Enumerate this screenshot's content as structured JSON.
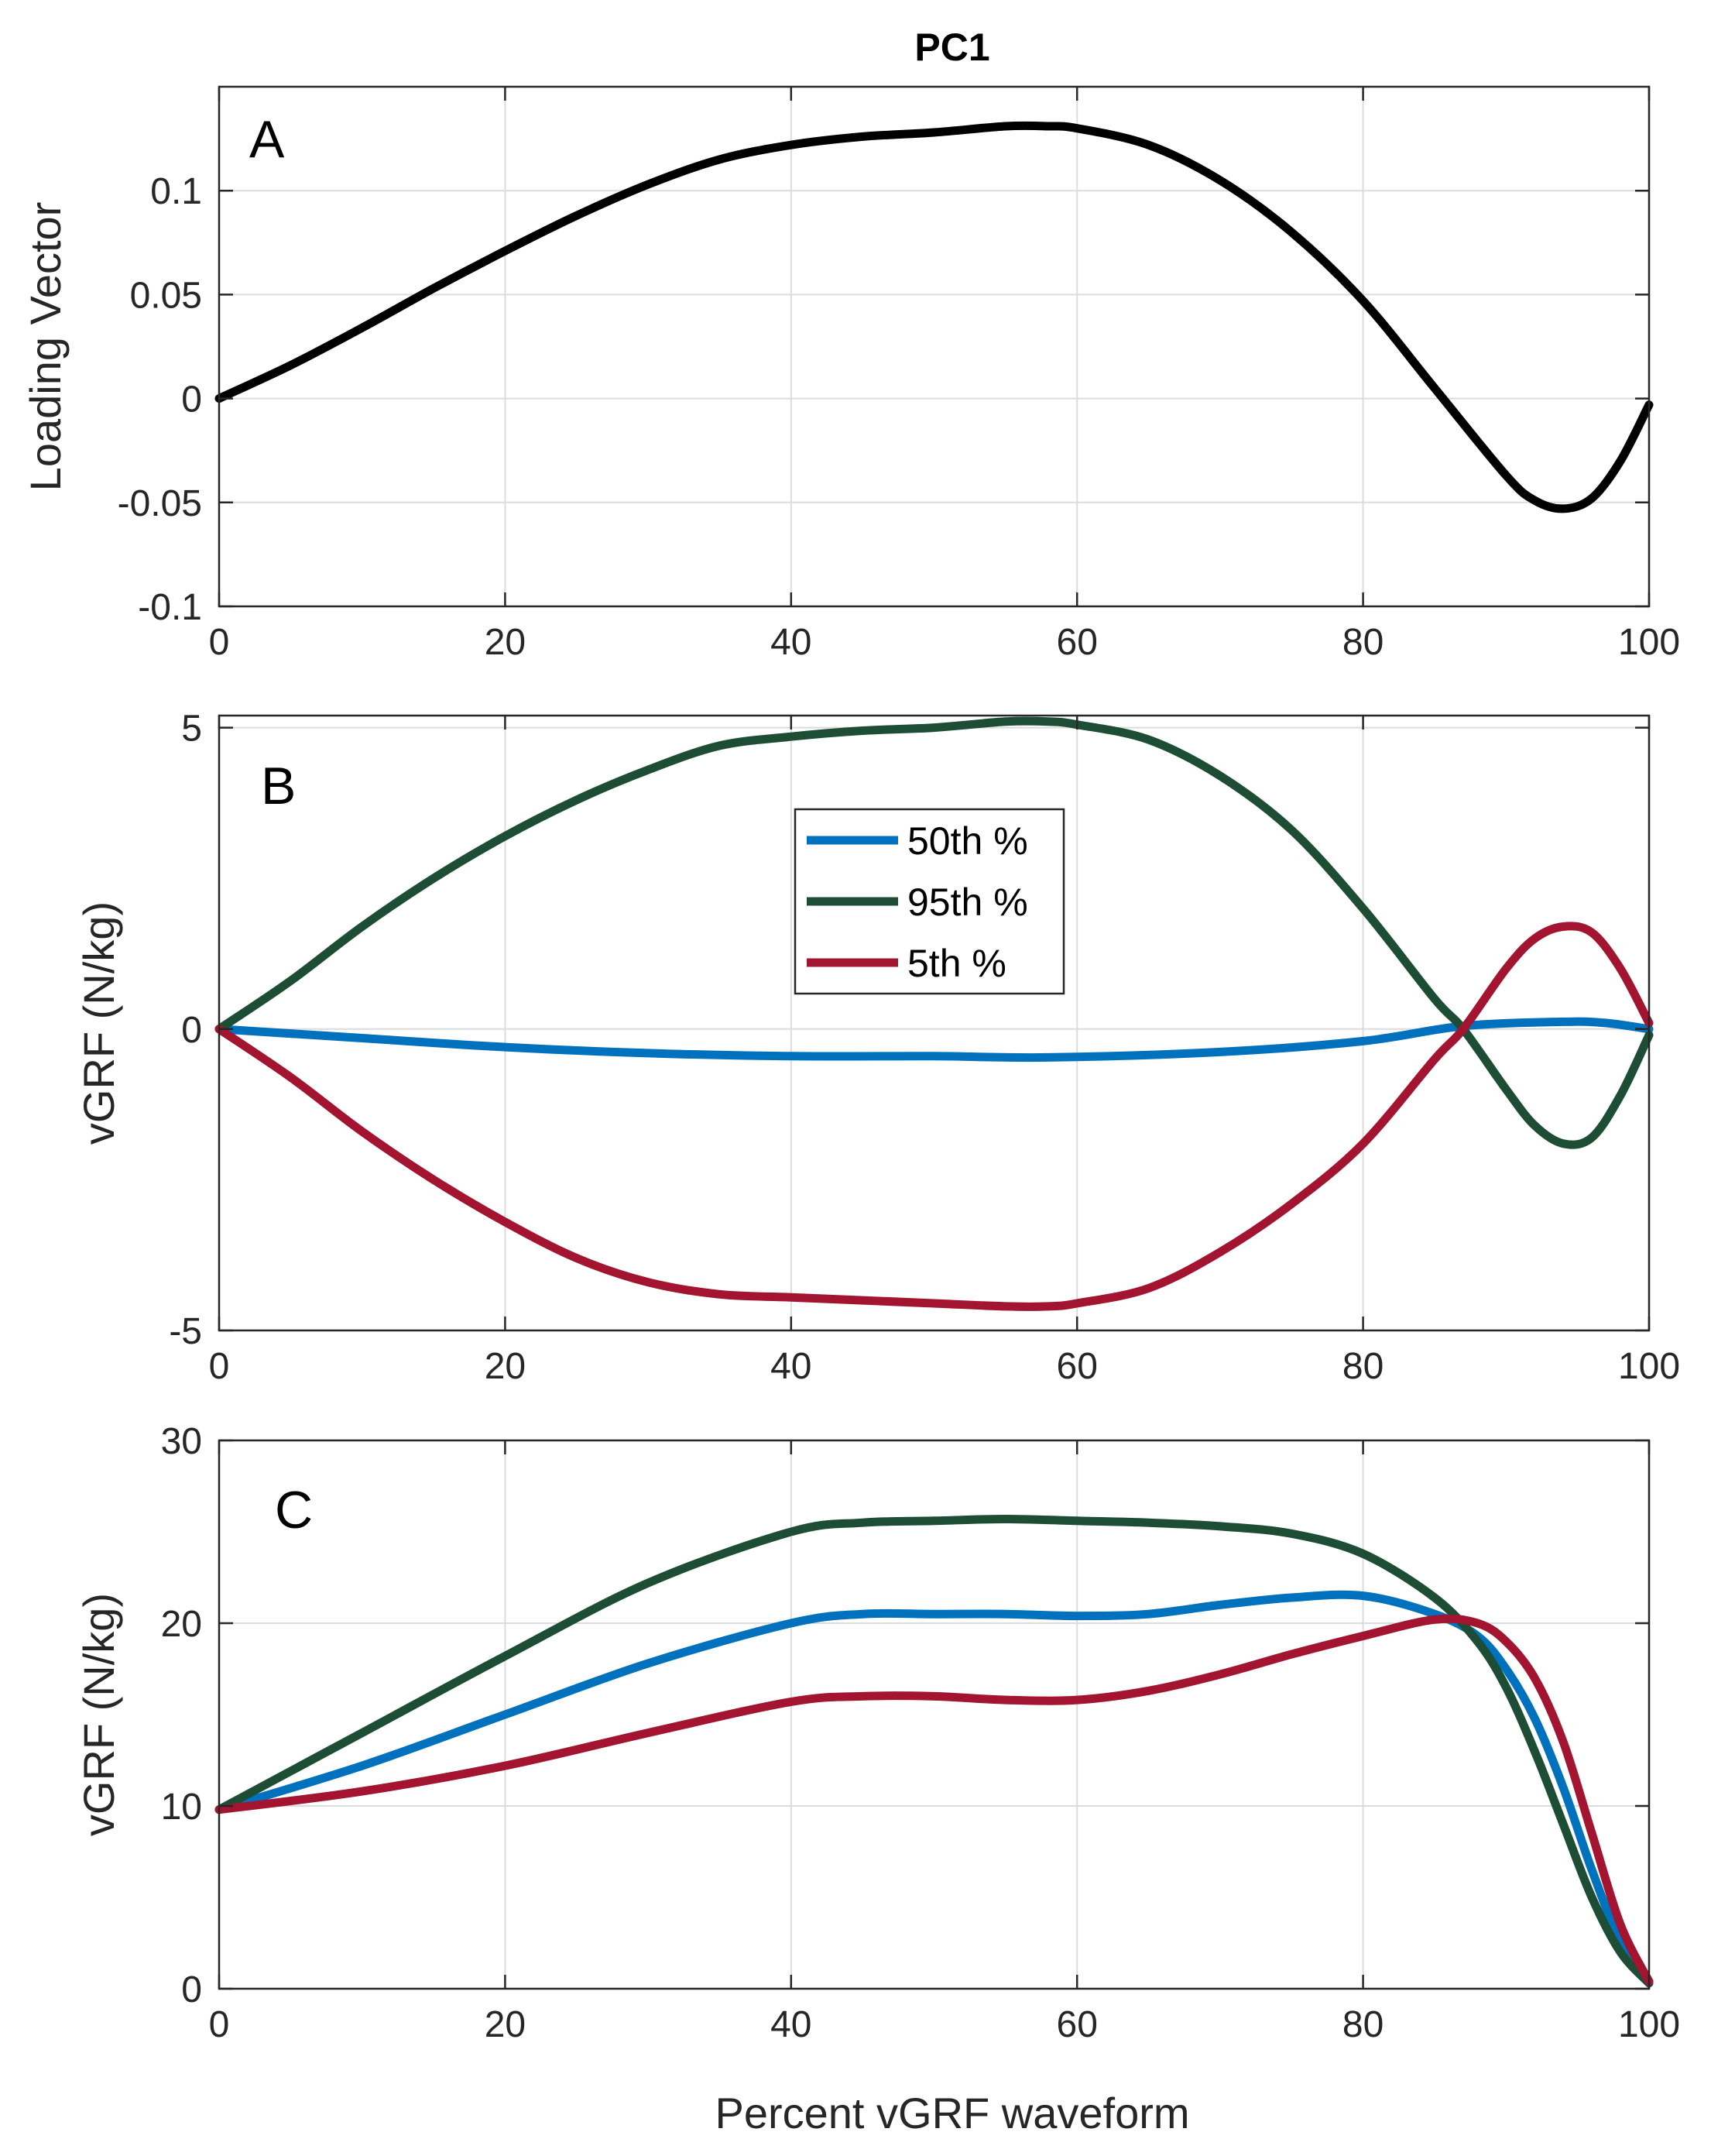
{
  "figure_title": "PC1",
  "x_axis_label": "Percent vGRF waveform",
  "legend": [
    {
      "label": "50th %",
      "color": "#0072BD"
    },
    {
      "label": "95th %",
      "color": "#1D4E35"
    },
    {
      "label": "5th %",
      "color": "#A2142F"
    }
  ],
  "chart_data": [
    {
      "type": "line",
      "panel": "A",
      "title": "PC1",
      "xlabel": "",
      "ylabel": "Loading Vector",
      "xlim": [
        0,
        100
      ],
      "ylim": [
        -0.1,
        0.15
      ],
      "xticks": [
        0,
        20,
        40,
        60,
        80,
        100
      ],
      "xtick_labels": [
        "0",
        "20",
        "40",
        "60",
        "80",
        "100"
      ],
      "yticks": [
        -0.1,
        -0.05,
        0,
        0.05,
        0.1
      ],
      "ytick_labels": [
        "-0.1",
        "-0.05",
        "0",
        "0.05",
        "0.1"
      ],
      "grid": true,
      "series": [
        {
          "name": "Loading Vector",
          "color": "#000000",
          "x": [
            0,
            5,
            10,
            15,
            20,
            25,
            30,
            35,
            40,
            45,
            50,
            55,
            58,
            60,
            65,
            70,
            75,
            80,
            85,
            90,
            92,
            94,
            96,
            98,
            100
          ],
          "y": [
            0,
            0.016,
            0.034,
            0.053,
            0.071,
            0.088,
            0.103,
            0.115,
            0.122,
            0.126,
            0.128,
            0.131,
            0.131,
            0.13,
            0.122,
            0.105,
            0.08,
            0.047,
            0.005,
            -0.037,
            -0.049,
            -0.053,
            -0.048,
            -0.03,
            -0.003
          ]
        }
      ]
    },
    {
      "type": "line",
      "panel": "B",
      "xlabel": "",
      "ylabel": "vGRF (N/kg)",
      "xlim": [
        0,
        100
      ],
      "ylim": [
        -5,
        5.2
      ],
      "xticks": [
        0,
        20,
        40,
        60,
        80,
        100
      ],
      "xtick_labels": [
        "0",
        "20",
        "40",
        "60",
        "80",
        "100"
      ],
      "yticks": [
        -5,
        0,
        5
      ],
      "ytick_labels": [
        "-5",
        "0",
        "5"
      ],
      "grid": true,
      "legend_position": "top-center",
      "series": [
        {
          "name": "50th %",
          "color": "#0072BD",
          "x": [
            0,
            10,
            20,
            30,
            40,
            50,
            58,
            70,
            80,
            87,
            94,
            97,
            100
          ],
          "y": [
            0,
            -0.15,
            -0.3,
            -0.4,
            -0.45,
            -0.45,
            -0.47,
            -0.38,
            -0.2,
            0.05,
            0.12,
            0.1,
            0.0
          ]
        },
        {
          "name": "95th %",
          "color": "#1D4E35",
          "x": [
            0,
            5,
            10,
            15,
            20,
            25,
            30,
            35,
            40,
            45,
            50,
            55,
            58,
            60,
            65,
            70,
            75,
            80,
            85,
            87,
            90,
            92,
            94,
            96,
            98,
            100
          ],
          "y": [
            0,
            0.8,
            1.7,
            2.5,
            3.2,
            3.8,
            4.3,
            4.7,
            4.85,
            4.95,
            5.0,
            5.1,
            5.1,
            5.05,
            4.8,
            4.2,
            3.3,
            2.0,
            0.5,
            0.0,
            -1.0,
            -1.6,
            -1.9,
            -1.8,
            -1.1,
            -0.1
          ]
        },
        {
          "name": "5th %",
          "color": "#A2142F",
          "x": [
            0,
            5,
            10,
            15,
            20,
            25,
            30,
            35,
            40,
            45,
            50,
            55,
            58,
            60,
            65,
            70,
            75,
            80,
            85,
            87,
            90,
            92,
            94,
            96,
            98,
            100
          ],
          "y": [
            0,
            -0.8,
            -1.7,
            -2.5,
            -3.2,
            -3.8,
            -4.2,
            -4.4,
            -4.45,
            -4.5,
            -4.55,
            -4.6,
            -4.6,
            -4.55,
            -4.3,
            -3.7,
            -2.9,
            -1.9,
            -0.5,
            0.0,
            1.0,
            1.5,
            1.7,
            1.6,
            1.0,
            0.1
          ]
        }
      ]
    },
    {
      "type": "line",
      "panel": "C",
      "xlabel": "Percent vGRF waveform",
      "ylabel": "vGRF (N/kg)",
      "xlim": [
        0,
        100
      ],
      "ylim": [
        0,
        30
      ],
      "xticks": [
        0,
        20,
        40,
        60,
        80,
        100
      ],
      "xtick_labels": [
        "0",
        "20",
        "40",
        "60",
        "80",
        "100"
      ],
      "yticks": [
        0,
        10,
        20,
        30
      ],
      "ytick_labels": [
        "0",
        "10",
        "20",
        "30"
      ],
      "grid": true,
      "series": [
        {
          "name": "50th %",
          "color": "#0072BD",
          "x": [
            0,
            10,
            20,
            30,
            40,
            45,
            50,
            55,
            60,
            65,
            70,
            75,
            80,
            85,
            88,
            90,
            92,
            94,
            96,
            98,
            100
          ],
          "y": [
            9.8,
            12.2,
            15.0,
            17.8,
            20.0,
            20.5,
            20.5,
            20.5,
            20.4,
            20.5,
            21.0,
            21.4,
            21.5,
            20.5,
            19.3,
            17.5,
            14.8,
            11.0,
            6.5,
            2.6,
            0.4
          ]
        },
        {
          "name": "95th %",
          "color": "#1D4E35",
          "x": [
            0,
            10,
            20,
            30,
            40,
            45,
            50,
            55,
            60,
            65,
            70,
            75,
            80,
            85,
            88,
            90,
            92,
            94,
            96,
            98,
            100
          ],
          "y": [
            9.8,
            14.0,
            18.2,
            22.2,
            25.0,
            25.5,
            25.6,
            25.7,
            25.6,
            25.5,
            25.3,
            24.9,
            23.8,
            21.4,
            19.0,
            16.5,
            13.0,
            9.0,
            5.0,
            2.0,
            0.3
          ]
        },
        {
          "name": "5th %",
          "color": "#A2142F",
          "x": [
            0,
            10,
            20,
            30,
            40,
            45,
            50,
            55,
            60,
            65,
            70,
            75,
            80,
            85,
            88,
            90,
            92,
            94,
            96,
            98,
            100
          ],
          "y": [
            9.8,
            10.8,
            12.2,
            14.0,
            15.7,
            16.0,
            16.0,
            15.8,
            15.8,
            16.3,
            17.2,
            18.3,
            19.3,
            20.2,
            20.0,
            19.0,
            17.0,
            13.5,
            8.5,
            3.5,
            0.4
          ]
        }
      ]
    }
  ]
}
